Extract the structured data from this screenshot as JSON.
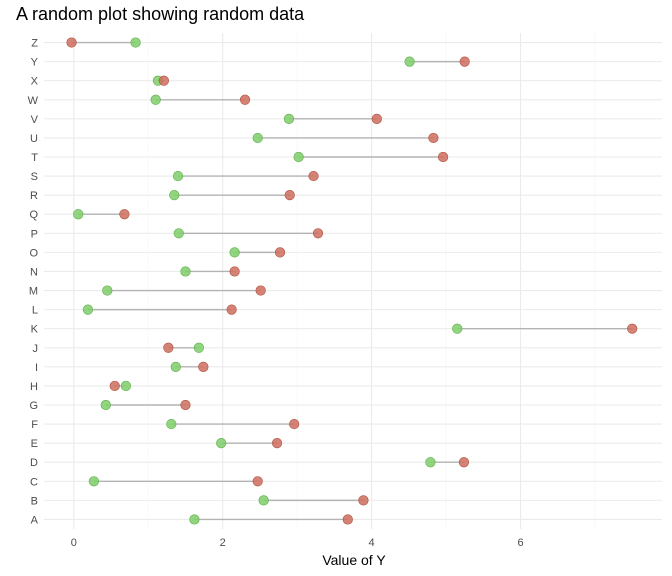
{
  "chart_data": {
    "type": "dumbbell",
    "title": "A random plot showing random data",
    "xlabel": "Value of Y",
    "ylabel": "",
    "xlim": [
      -0.4,
      7.9
    ],
    "xticks": [
      0,
      2,
      4,
      6
    ],
    "grid": true,
    "colors": {
      "value1": "#7fce6a",
      "value2": "#cd6d5e",
      "segment": "#b3b3b3"
    },
    "categories": [
      "A",
      "B",
      "C",
      "D",
      "E",
      "F",
      "G",
      "H",
      "I",
      "J",
      "K",
      "L",
      "M",
      "N",
      "O",
      "P",
      "Q",
      "R",
      "S",
      "T",
      "U",
      "V",
      "W",
      "X",
      "Y",
      "Z"
    ],
    "series": [
      {
        "key": "value1",
        "values": [
          1.62,
          2.55,
          0.27,
          4.79,
          1.98,
          1.31,
          0.43,
          0.7,
          1.37,
          1.68,
          5.15,
          0.19,
          0.45,
          1.5,
          2.16,
          1.41,
          0.06,
          1.35,
          1.4,
          3.02,
          2.47,
          2.89,
          1.1,
          1.13,
          4.51,
          0.83
        ]
      },
      {
        "key": "value2",
        "values": [
          3.68,
          3.89,
          2.47,
          5.24,
          2.73,
          2.96,
          1.5,
          0.55,
          1.74,
          1.27,
          7.5,
          2.12,
          2.51,
          2.16,
          2.77,
          3.28,
          0.68,
          2.9,
          3.22,
          4.96,
          4.83,
          4.07,
          2.3,
          1.21,
          5.25,
          -0.03
        ]
      }
    ]
  }
}
